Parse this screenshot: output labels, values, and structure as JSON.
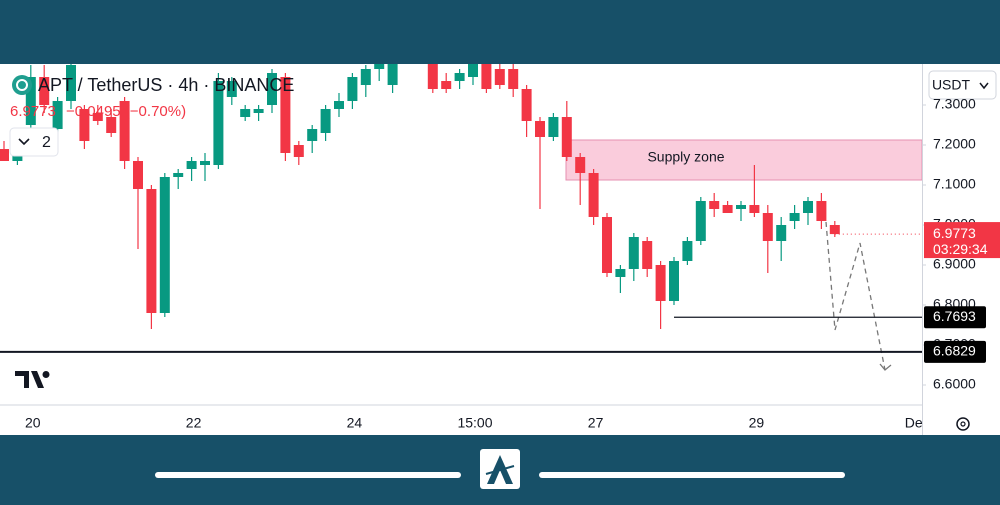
{
  "chart_data": {
    "type": "candlestick",
    "title": "APT / TetherUS · 4h · BINANCE",
    "change": "−0.0495 (−0.70%)",
    "indicator_count": 2,
    "currency": "USDT",
    "countdown": "03:29:34",
    "up_color": "#089981",
    "down_color": "#f23645",
    "categories": [
      null,
      null,
      "20",
      null,
      null,
      null,
      null,
      null,
      null,
      null,
      null,
      null,
      null,
      null,
      "22",
      null,
      null,
      null,
      null,
      null,
      null,
      null,
      null,
      null,
      null,
      null,
      "24",
      null,
      null,
      null,
      null,
      null,
      null,
      null,
      null,
      "15:00",
      null,
      null,
      null,
      null,
      null,
      null,
      null,
      null,
      "27",
      null,
      null,
      null,
      null,
      null,
      null,
      null,
      null,
      null,
      null,
      null,
      "29",
      null,
      null,
      null,
      null,
      null,
      null,
      null,
      null,
      null,
      null,
      null,
      "Dec"
    ],
    "open": [
      7.19,
      7.16,
      7.25,
      7.37,
      7.24,
      7.31,
      7.29,
      7.28,
      7.27,
      7.31,
      7.16,
      7.09,
      6.78,
      7.12,
      7.14,
      7.15,
      7.15,
      7.32,
      7.27,
      7.28,
      7.3,
      7.37,
      7.2,
      7.21,
      7.23,
      7.29,
      7.31,
      7.35,
      7.39,
      7.35,
      7.42,
      7.46,
      7.42,
      7.36,
      7.36,
      7.37,
      7.41,
      7.39,
      7.39,
      7.34,
      7.26,
      7.22,
      7.27,
      7.17,
      7.13,
      7.02,
      6.87,
      6.89,
      6.96,
      6.9,
      6.81,
      6.91,
      6.96,
      7.06,
      7.05,
      7.04,
      7.05,
      7.03,
      6.96,
      7.01,
      7.03,
      7.06,
      7.0,
      null,
      null,
      null,
      null,
      null,
      null
    ],
    "high": [
      7.21,
      7.22,
      7.4,
      7.4,
      7.32,
      7.42,
      7.3,
      7.3,
      7.29,
      7.32,
      7.17,
      7.1,
      7.13,
      7.14,
      7.17,
      7.18,
      7.38,
      7.37,
      7.3,
      7.3,
      7.39,
      7.38,
      7.21,
      7.25,
      7.3,
      7.33,
      7.38,
      7.4,
      7.43,
      7.44,
      7.48,
      7.5,
      7.44,
      7.38,
      7.39,
      7.42,
      7.42,
      7.41,
      7.41,
      7.35,
      7.27,
      7.28,
      7.31,
      7.18,
      7.14,
      7.03,
      6.9,
      6.98,
      6.97,
      6.91,
      6.92,
      6.97,
      7.07,
      7.08,
      7.06,
      7.06,
      7.15,
      7.05,
      7.02,
      7.05,
      7.07,
      7.08,
      7.01,
      null,
      null,
      null,
      null,
      null,
      null
    ],
    "low": [
      7.16,
      7.15,
      7.24,
      7.28,
      7.22,
      7.29,
      7.19,
      7.25,
      7.22,
      7.14,
      6.94,
      6.74,
      6.77,
      7.09,
      7.11,
      7.11,
      7.14,
      7.3,
      7.26,
      7.26,
      7.28,
      7.16,
      7.15,
      7.18,
      7.21,
      7.27,
      7.29,
      7.32,
      7.36,
      7.33,
      7.41,
      7.43,
      7.33,
      7.33,
      7.34,
      7.35,
      7.33,
      7.34,
      7.32,
      7.22,
      7.04,
      7.21,
      7.16,
      7.05,
      7.0,
      6.87,
      6.83,
      6.86,
      6.87,
      6.74,
      6.8,
      6.9,
      6.95,
      7.02,
      7.03,
      7.01,
      7.02,
      6.88,
      6.91,
      6.99,
      7.0,
      6.99,
      6.97,
      null,
      null,
      null,
      null,
      null,
      null
    ],
    "close": [
      7.16,
      7.2,
      7.37,
      7.3,
      7.31,
      7.4,
      7.21,
      7.26,
      7.23,
      7.16,
      7.09,
      6.78,
      7.12,
      7.13,
      7.16,
      7.16,
      7.36,
      7.36,
      7.29,
      7.29,
      7.38,
      7.18,
      7.17,
      7.24,
      7.29,
      7.31,
      7.37,
      7.39,
      7.41,
      7.42,
      7.46,
      7.45,
      7.34,
      7.34,
      7.38,
      7.41,
      7.34,
      7.35,
      7.34,
      7.26,
      7.22,
      7.27,
      7.17,
      7.13,
      7.02,
      6.88,
      6.89,
      6.97,
      6.89,
      6.81,
      6.91,
      6.96,
      7.06,
      7.04,
      7.03,
      7.05,
      7.03,
      6.96,
      7.0,
      7.03,
      7.06,
      7.01,
      6.9773,
      null,
      null,
      null,
      null,
      null,
      null
    ],
    "ylim": [
      6.55,
      7.4025
    ],
    "yticks": [
      {
        "value": 6.6,
        "label": "6.6000"
      },
      {
        "value": 6.7,
        "label": "6.7000"
      },
      {
        "value": 6.8,
        "label": "6.8000"
      },
      {
        "value": 6.9,
        "label": "6.9000"
      },
      {
        "value": 7.0,
        "label": "7.0000"
      },
      {
        "value": 7.1,
        "label": "7.1000"
      },
      {
        "value": 7.2,
        "label": "7.2000"
      },
      {
        "value": 7.3,
        "label": "7.3000"
      }
    ],
    "levels": [
      6.7693,
      6.6829
    ],
    "zones": [
      {
        "label": "Supply zone",
        "low": 7.1125,
        "high": 7.2125
      }
    ]
  }
}
